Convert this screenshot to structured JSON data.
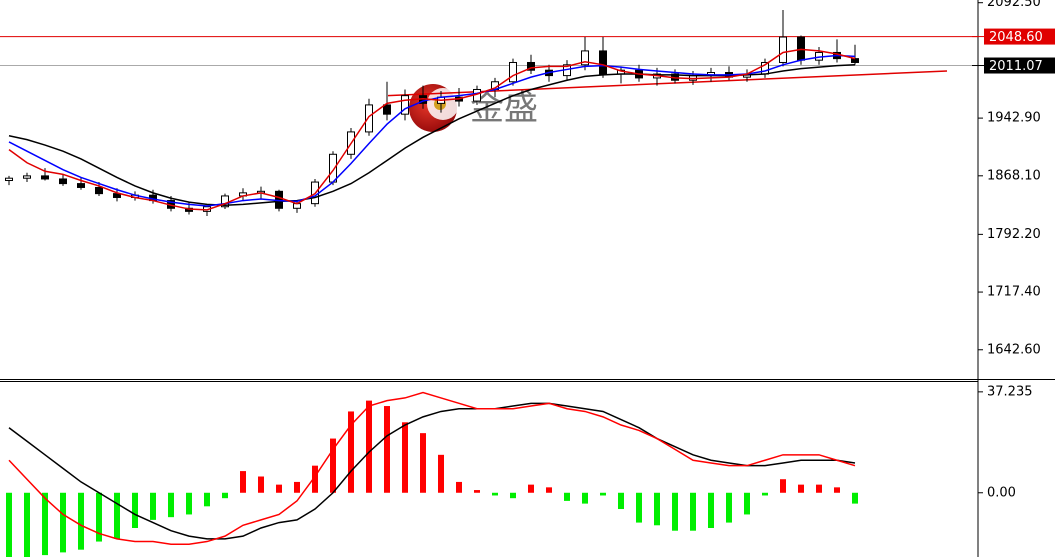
{
  "chart_data": [
    {
      "type": "candlestick",
      "ylim": [
        1606,
        2096
      ],
      "yticks": [
        {
          "value": 2092.5,
          "label": "2092.50"
        },
        {
          "value": 1942.9,
          "label": "1942.90"
        },
        {
          "value": 1868.1,
          "label": "1868.10"
        },
        {
          "value": 1792.2,
          "label": "1792.20"
        },
        {
          "value": 1717.4,
          "label": "1717.40"
        },
        {
          "value": 1642.6,
          "label": "1642.60"
        }
      ],
      "candles": [
        [
          1862,
          1868,
          1856,
          1865
        ],
        [
          1865,
          1872,
          1860,
          1868
        ],
        [
          1868,
          1878,
          1862,
          1864
        ],
        [
          1864,
          1870,
          1855,
          1858
        ],
        [
          1858,
          1866,
          1850,
          1853
        ],
        [
          1853,
          1860,
          1842,
          1845
        ],
        [
          1845,
          1852,
          1835,
          1840
        ],
        [
          1840,
          1848,
          1836,
          1843
        ],
        [
          1843,
          1850,
          1832,
          1836
        ],
        [
          1836,
          1842,
          1822,
          1826
        ],
        [
          1826,
          1834,
          1818,
          1822
        ],
        [
          1822,
          1830,
          1816,
          1828
        ],
        [
          1828,
          1845,
          1825,
          1842
        ],
        [
          1842,
          1852,
          1836,
          1846
        ],
        [
          1846,
          1854,
          1838,
          1848
        ],
        [
          1848,
          1850,
          1822,
          1826
        ],
        [
          1826,
          1836,
          1820,
          1832
        ],
        [
          1832,
          1864,
          1828,
          1860
        ],
        [
          1860,
          1900,
          1856,
          1896
        ],
        [
          1896,
          1930,
          1890,
          1925
        ],
        [
          1925,
          1968,
          1920,
          1960
        ],
        [
          1960,
          1990,
          1940,
          1948
        ],
        [
          1948,
          1980,
          1940,
          1972
        ],
        [
          1972,
          1985,
          1955,
          1962
        ],
        [
          1962,
          1978,
          1950,
          1970
        ],
        [
          1970,
          1982,
          1958,
          1965
        ],
        [
          1965,
          1985,
          1960,
          1980
        ],
        [
          1980,
          1995,
          1970,
          1990
        ],
        [
          1990,
          2020,
          1985,
          2015
        ],
        [
          2015,
          2025,
          2000,
          2005
        ],
        [
          2005,
          2012,
          1990,
          1998
        ],
        [
          1998,
          2018,
          1992,
          2012
        ],
        [
          2012,
          2048,
          2005,
          2030
        ],
        [
          2030,
          2048,
          1995,
          2000
        ],
        [
          2000,
          2010,
          1988,
          2005
        ],
        [
          2005,
          2012,
          1990,
          1995
        ],
        [
          1995,
          2008,
          1985,
          2000
        ],
        [
          2000,
          2006,
          1988,
          1992
        ],
        [
          1992,
          2004,
          1986,
          1998
        ],
        [
          1998,
          2008,
          1990,
          2002
        ],
        [
          2002,
          2010,
          1992,
          1996
        ],
        [
          1996,
          2006,
          1990,
          2000
        ],
        [
          2000,
          2020,
          1995,
          2015
        ],
        [
          2015,
          2083,
          2010,
          2048
        ],
        [
          2048,
          2050,
          2012,
          2018
        ],
        [
          2018,
          2035,
          2012,
          2028
        ],
        [
          2028,
          2045,
          2015,
          2020
        ],
        [
          2020,
          2038,
          2012,
          2015
        ]
      ],
      "up_color": "#ffffff",
      "down_color": "#000000",
      "lines": [
        {
          "color": "#000000",
          "values": [
            1920,
            1915,
            1908,
            1900,
            1890,
            1878,
            1866,
            1855,
            1846,
            1839,
            1834,
            1831,
            1830,
            1831,
            1833,
            1835,
            1836,
            1840,
            1848,
            1858,
            1872,
            1888,
            1904,
            1918,
            1930,
            1942,
            1952,
            1962,
            1972,
            1980,
            1986,
            1992,
            1997,
            1999,
            2000,
            2000,
            1999,
            1999,
            1998,
            1998,
            1998,
            1999,
            2000,
            2004,
            2007,
            2009,
            2011,
            2012
          ]
        },
        {
          "color": "#0000ff",
          "values": [
            1912,
            1900,
            1888,
            1876,
            1866,
            1858,
            1850,
            1843,
            1838,
            1834,
            1831,
            1829,
            1832,
            1836,
            1838,
            1836,
            1835,
            1842,
            1860,
            1884,
            1910,
            1935,
            1955,
            1965,
            1970,
            1972,
            1975,
            1980,
            1988,
            1996,
            2002,
            2006,
            2010,
            2011,
            2009,
            2006,
            2004,
            2002,
            2000,
            1999,
            1999,
            2000,
            2004,
            2012,
            2018,
            2022,
            2024,
            2023
          ]
        },
        {
          "color": "#e00000",
          "values": [
            1902,
            1885,
            1874,
            1870,
            1862,
            1855,
            1846,
            1840,
            1836,
            1830,
            1825,
            1824,
            1832,
            1842,
            1846,
            1840,
            1832,
            1845,
            1875,
            1910,
            1945,
            1962,
            1966,
            1968,
            1966,
            1968,
            1974,
            1982,
            1998,
            2008,
            2010,
            2010,
            2016,
            2012,
            2004,
            2000,
            1998,
            1995,
            1994,
            1995,
            1996,
            2000,
            2012,
            2028,
            2032,
            2030,
            2026,
            2020
          ]
        }
      ],
      "levels": [
        {
          "value": 2048.6,
          "label": "2048.60",
          "color": "#e00000"
        },
        {
          "value": 2011.07,
          "label": "2011.07",
          "color": "#000000"
        }
      ],
      "trendline": [
        1972,
        2004
      ],
      "trendline_color": "#e00000",
      "watermark": "金盛"
    },
    {
      "type": "macd",
      "ylim": [
        -23.7,
        40.5
      ],
      "yticks": [
        37.235,
        {
          "value": 0,
          "label": "0.00"
        }
      ],
      "histogram": [
        -24,
        -24,
        -23,
        -22,
        -21,
        -18,
        -17,
        -13,
        -10,
        -9,
        -8,
        -5,
        -2,
        8,
        6,
        3,
        4,
        10,
        20,
        30,
        34,
        32,
        26,
        22,
        14,
        4,
        1,
        -1,
        -2,
        3,
        2,
        -3,
        -4,
        -1,
        -6,
        -11,
        -12,
        -14,
        -14,
        -13,
        -11,
        -8,
        -1,
        5,
        3,
        3,
        2,
        -4
      ],
      "up_color": "#ff0000",
      "down_color": "#00ee00",
      "lines": [
        {
          "color": "#000000",
          "values": [
            24,
            19,
            14,
            9,
            4,
            0,
            -4,
            -8,
            -11,
            -14,
            -16,
            -17,
            -17,
            -16,
            -13,
            -11,
            -10,
            -6,
            0,
            8,
            15,
            21,
            25,
            28,
            30,
            31,
            31,
            31,
            32,
            33,
            33,
            32,
            31,
            30,
            27,
            24,
            20,
            17,
            14,
            12,
            11,
            10,
            10,
            11,
            12,
            12,
            12,
            11
          ]
        },
        {
          "color": "#ff0000",
          "values": [
            12,
            5,
            -2,
            -8,
            -12,
            -15,
            -17,
            -18,
            -18,
            -19,
            -19,
            -18,
            -16,
            -12,
            -10,
            -8,
            -3,
            6,
            16,
            25,
            32,
            34,
            35,
            37,
            35,
            33,
            31,
            31,
            31,
            32,
            33,
            31,
            30,
            28,
            25,
            23,
            20,
            16,
            12,
            11,
            10,
            10,
            12,
            14,
            14,
            14,
            12,
            10
          ]
        }
      ]
    }
  ]
}
